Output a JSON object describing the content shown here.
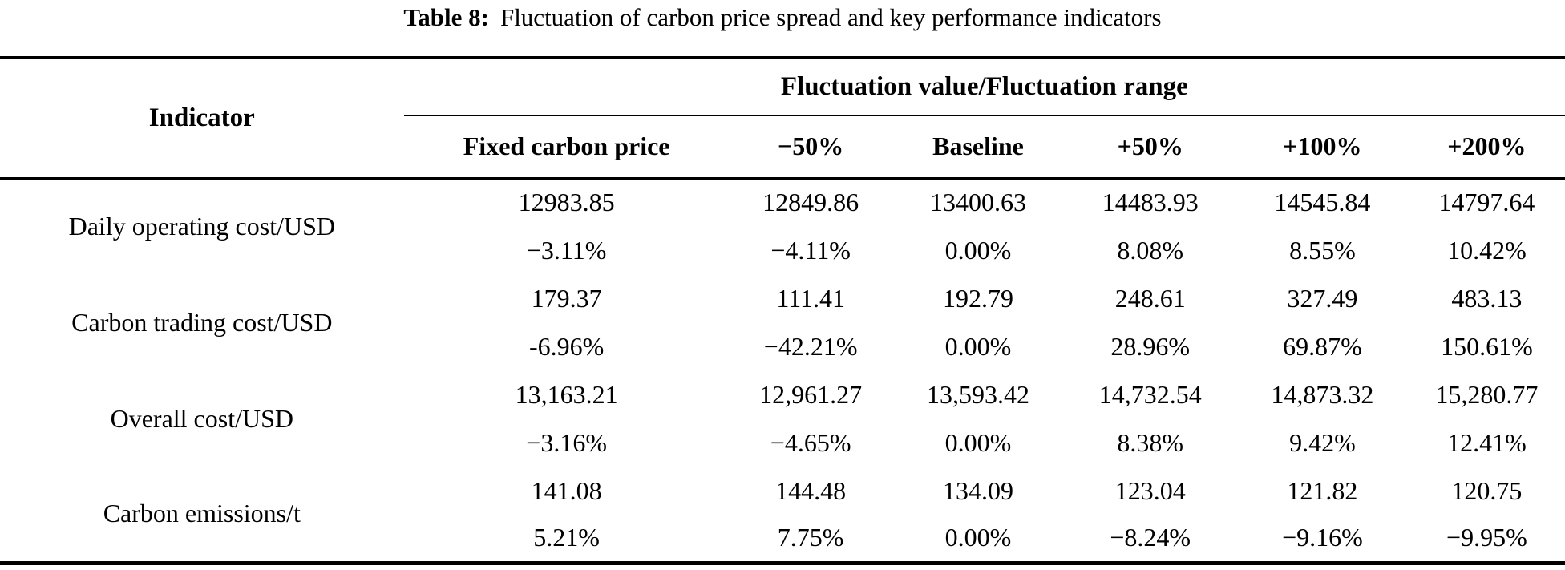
{
  "title": {
    "label": "Table 8:",
    "text": "Fluctuation of carbon price spread and key performance indicators"
  },
  "table": {
    "indicator_header": "Indicator",
    "group_header": "Fluctuation value/Fluctuation range",
    "columns": [
      "Fixed carbon price",
      "−50%",
      "Baseline",
      "+50%",
      "+100%",
      "+200%"
    ],
    "rows": [
      {
        "indicator": "Daily operating cost/USD",
        "values": [
          "12983.85",
          "12849.86",
          "13400.63",
          "14483.93",
          "14545.84",
          "14797.64"
        ],
        "changes": [
          "−3.11%",
          "−4.11%",
          "0.00%",
          "8.08%",
          "8.55%",
          "10.42%"
        ]
      },
      {
        "indicator": "Carbon trading cost/USD",
        "values": [
          "179.37",
          "111.41",
          "192.79",
          "248.61",
          "327.49",
          "483.13"
        ],
        "changes": [
          "-6.96%",
          "−42.21%",
          "0.00%",
          "28.96%",
          "69.87%",
          "150.61%"
        ]
      },
      {
        "indicator": "Overall cost/USD",
        "values": [
          "13,163.21",
          "12,961.27",
          "13,593.42",
          "14,732.54",
          "14,873.32",
          "15,280.77"
        ],
        "changes": [
          "−3.16%",
          "−4.65%",
          "0.00%",
          "8.38%",
          "9.42%",
          "12.41%"
        ]
      },
      {
        "indicator": "Carbon emissions/t",
        "values": [
          "141.08",
          "144.48",
          "134.09",
          "123.04",
          "121.82",
          "120.75"
        ],
        "changes": [
          "5.21%",
          "7.75%",
          "0.00%",
          "−8.24%",
          "−9.16%",
          "−9.95%"
        ]
      }
    ]
  }
}
